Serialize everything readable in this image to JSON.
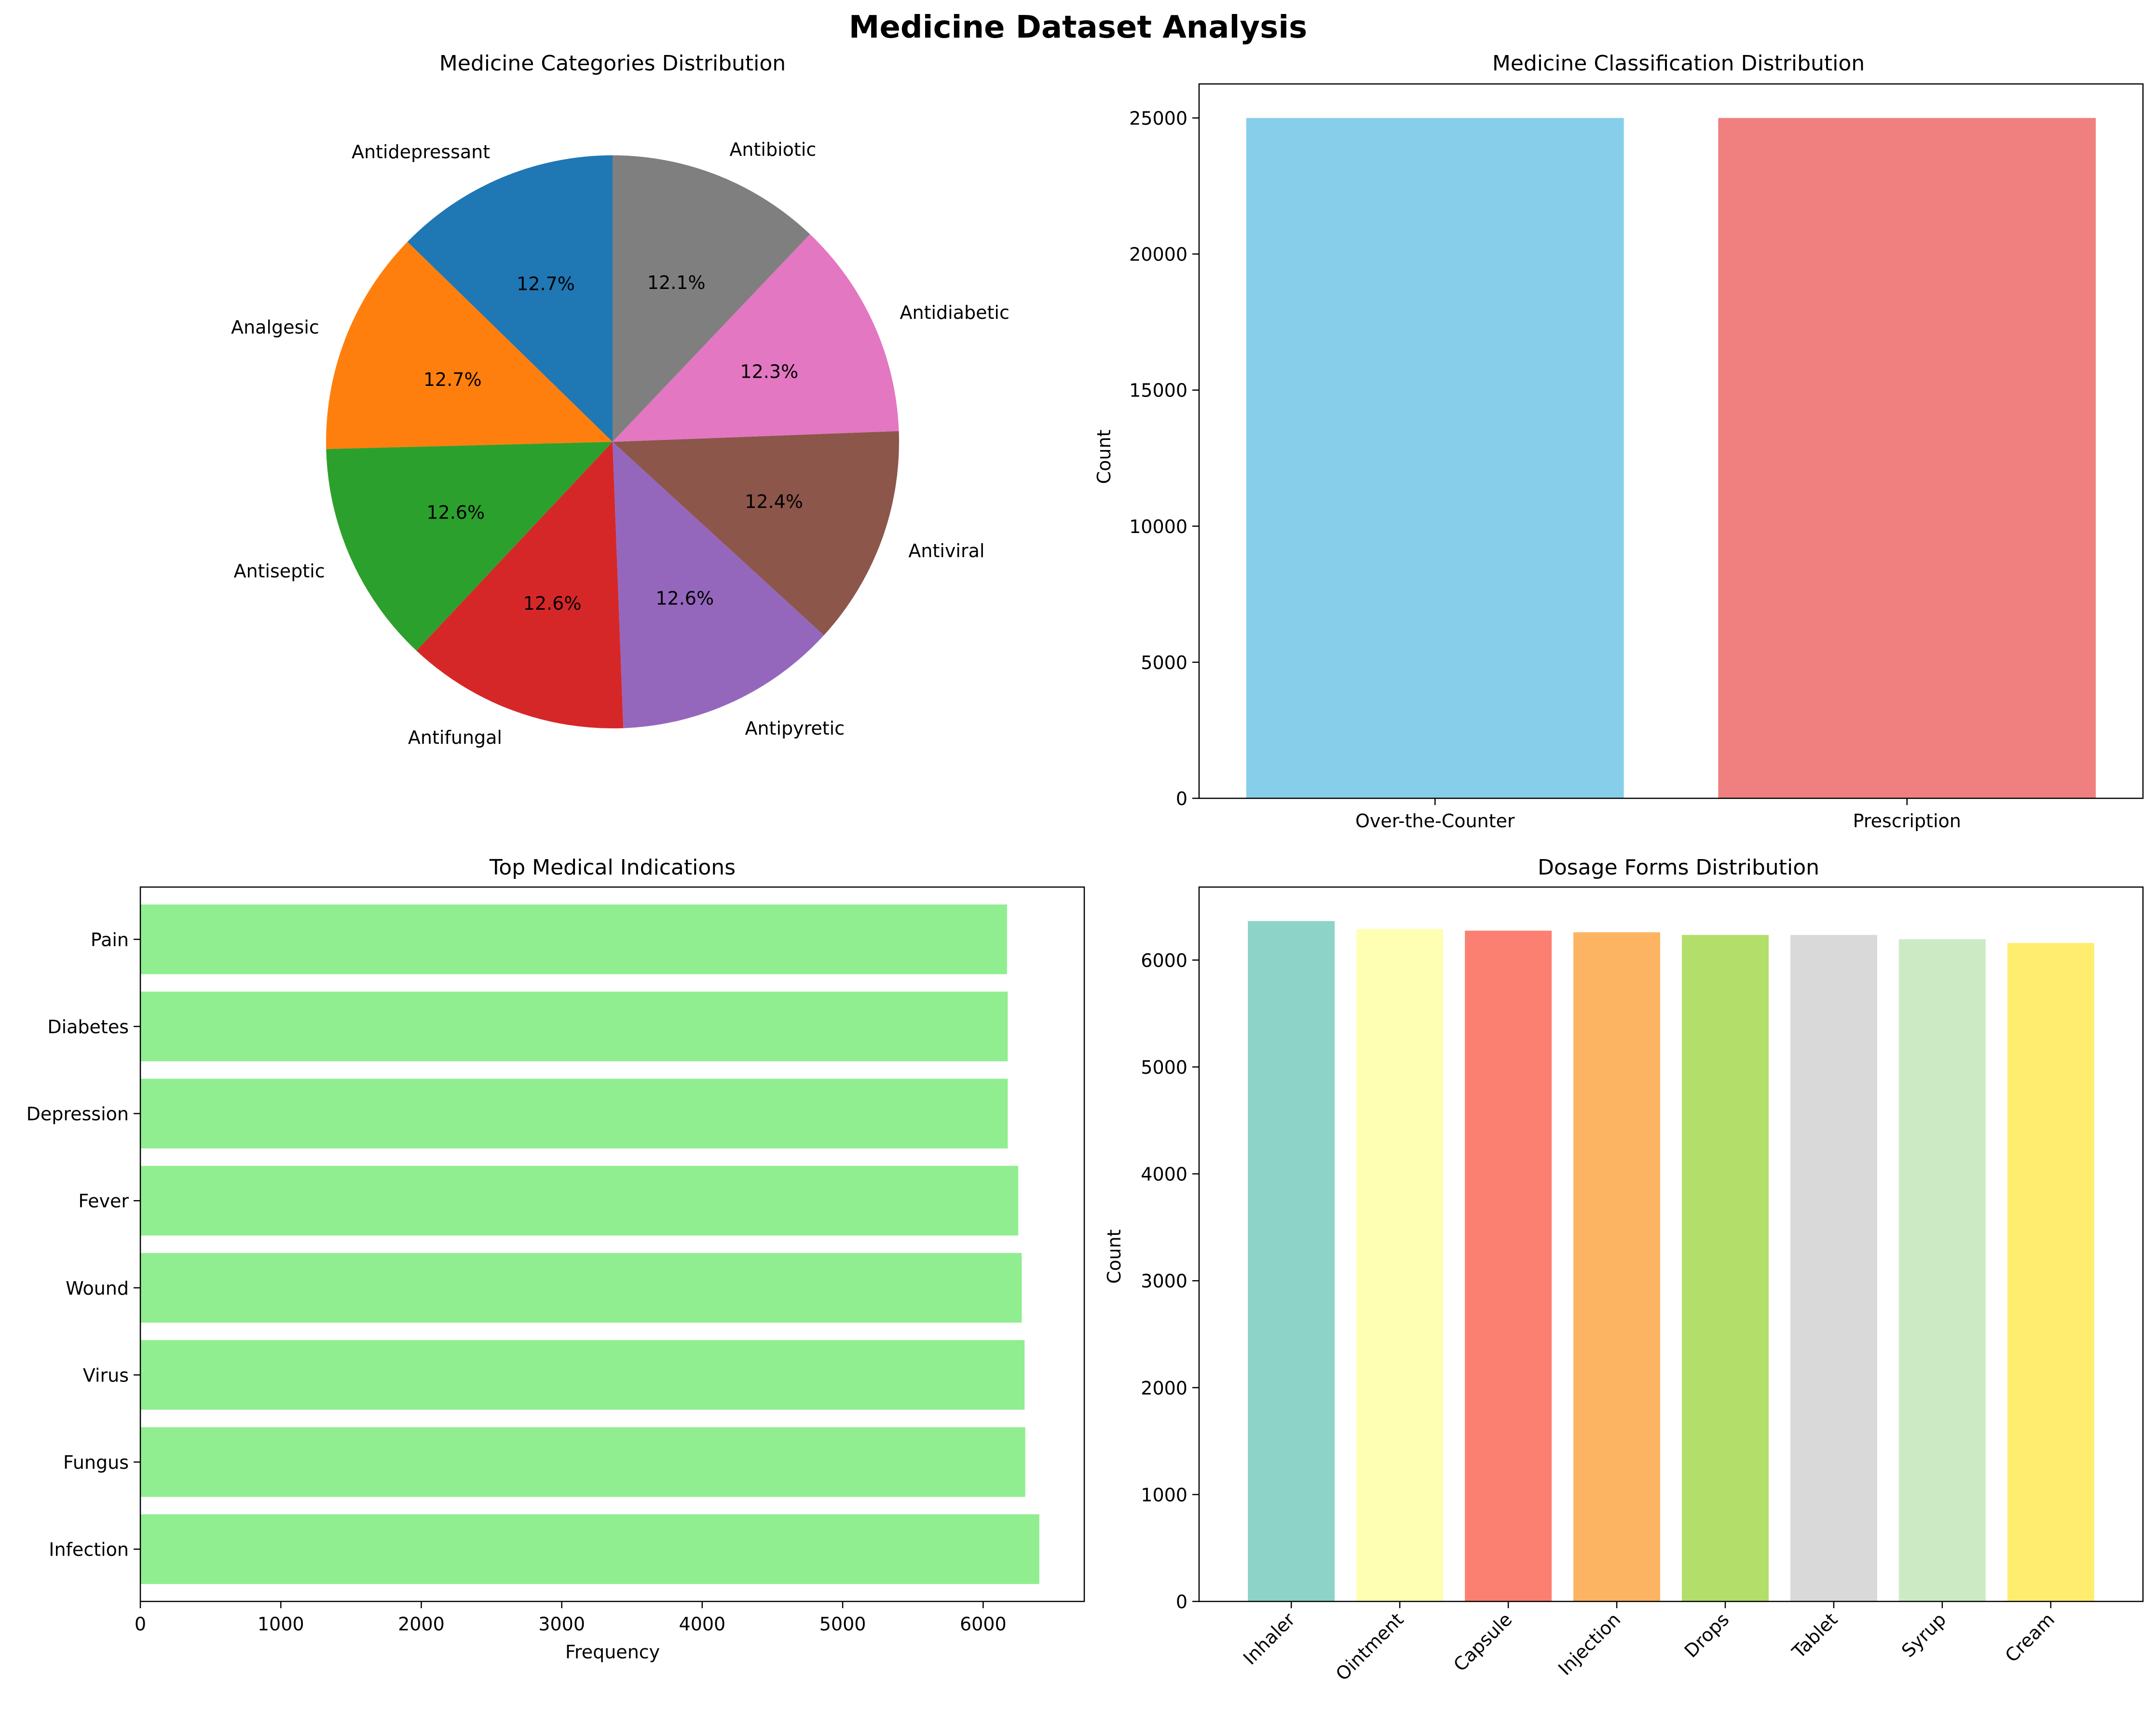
{
  "figure_title": "Medicine Dataset Analysis",
  "chart_data": [
    {
      "type": "pie",
      "title": "Medicine Categories Distribution",
      "slices": [
        {
          "label": "Antidepressant",
          "value": 12.7,
          "pct_label": "12.7%",
          "color": "#1f77b4"
        },
        {
          "label": "Analgesic",
          "value": 12.7,
          "pct_label": "12.7%",
          "color": "#ff7f0e"
        },
        {
          "label": "Antiseptic",
          "value": 12.6,
          "pct_label": "12.6%",
          "color": "#2ca02c"
        },
        {
          "label": "Antifungal",
          "value": 12.6,
          "pct_label": "12.6%",
          "color": "#d62728"
        },
        {
          "label": "Antipyretic",
          "value": 12.6,
          "pct_label": "12.6%",
          "color": "#9467bd"
        },
        {
          "label": "Antiviral",
          "value": 12.4,
          "pct_label": "12.4%",
          "color": "#8c564b"
        },
        {
          "label": "Antidiabetic",
          "value": 12.3,
          "pct_label": "12.3%",
          "color": "#e377c2"
        },
        {
          "label": "Antibiotic",
          "value": 12.1,
          "pct_label": "12.1%",
          "color": "#7f7f7f"
        }
      ],
      "start_angle_deg": 90,
      "direction": "counterclockwise"
    },
    {
      "type": "bar",
      "title": "Medicine Classification Distribution",
      "categories": [
        "Over-the-Counter",
        "Prescription"
      ],
      "values": [
        25000,
        25000
      ],
      "colors": [
        "#87ceeb",
        "#f08080"
      ],
      "xlabel": "",
      "ylabel": "Count",
      "ylim": [
        0,
        26250
      ],
      "yticks": [
        0,
        5000,
        10000,
        15000,
        20000,
        25000
      ]
    },
    {
      "type": "bar",
      "orientation": "horizontal",
      "title": "Top Medical Indications",
      "categories": [
        "Infection",
        "Fungus",
        "Virus",
        "Wound",
        "Fever",
        "Depression",
        "Diabetes",
        "Pain"
      ],
      "values": [
        6400,
        6300,
        6295,
        6275,
        6250,
        6175,
        6175,
        6170
      ],
      "color": "#90ee90",
      "xlabel": "Frequency",
      "ylabel": "",
      "xlim": [
        0,
        6720
      ],
      "xticks": [
        0,
        1000,
        2000,
        3000,
        4000,
        5000,
        6000
      ]
    },
    {
      "type": "bar",
      "title": "Dosage Forms Distribution",
      "categories": [
        "Inhaler",
        "Ointment",
        "Capsule",
        "Injection",
        "Drops",
        "Tablet",
        "Syrup",
        "Cream"
      ],
      "values": [
        6365,
        6290,
        6275,
        6260,
        6235,
        6235,
        6195,
        6160
      ],
      "colors": [
        "#8dd3c7",
        "#ffffb3",
        "#fb8072",
        "#fdb462",
        "#b3de69",
        "#d9d9d9",
        "#ccebc5",
        "#ffed6f"
      ],
      "xlabel": "",
      "ylabel": "Count",
      "ylim": [
        0,
        6683
      ],
      "yticks": [
        0,
        1000,
        2000,
        3000,
        4000,
        5000,
        6000
      ]
    }
  ]
}
